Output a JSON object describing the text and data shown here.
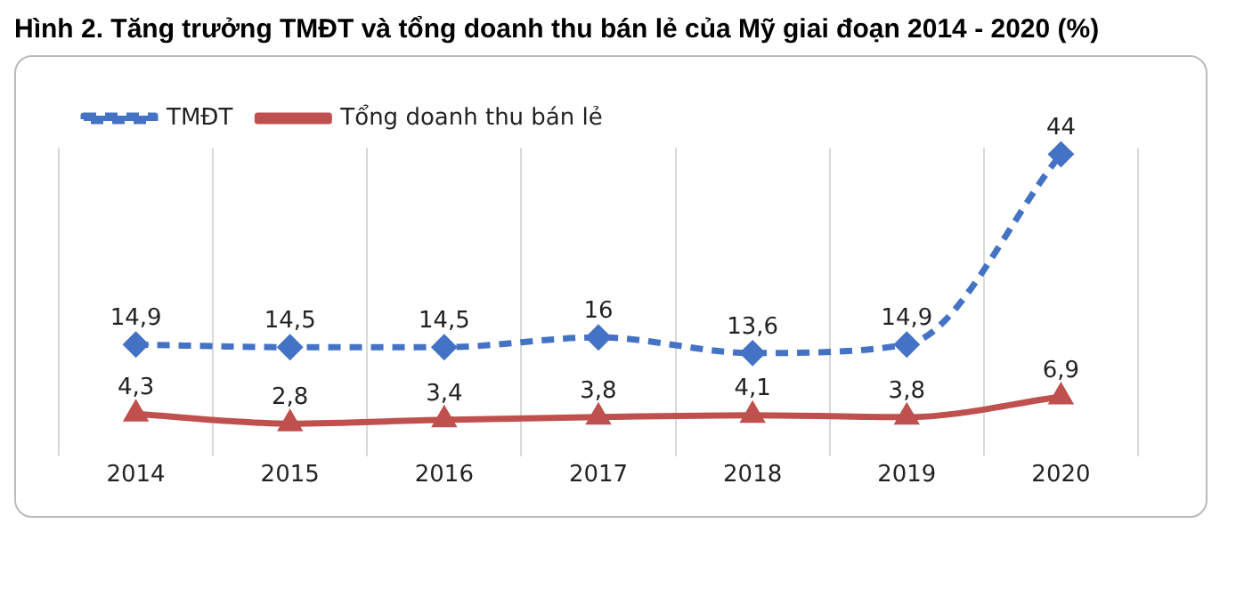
{
  "chart_data": {
    "type": "line",
    "title": "Hình 2. Tăng trưởng TMĐT và tổng doanh thu bán lẻ của Mỹ giai đoạn 2014 - 2020 (%)",
    "categories": [
      "2014",
      "2015",
      "2016",
      "2017",
      "2018",
      "2019",
      "2020"
    ],
    "series": [
      {
        "name": "TMĐT",
        "color": "#4472c4",
        "values": [
          14.9,
          14.5,
          14.5,
          16,
          13.6,
          14.9,
          44
        ],
        "value_labels": [
          "14,9",
          "14,5",
          "14,5",
          "16",
          "13,6",
          "14,9",
          "44"
        ],
        "marker": "diamond",
        "line_style": "dashed"
      },
      {
        "name": "Tổng doanh thu bán lẻ",
        "color": "#c0504d",
        "values": [
          4.3,
          2.8,
          3.4,
          3.8,
          4.1,
          3.8,
          6.9
        ],
        "value_labels": [
          "4,3",
          "2,8",
          "3,4",
          "3,8",
          "4,1",
          "3,8",
          "6,9"
        ],
        "marker": "triangle",
        "line_style": "solid"
      }
    ],
    "grid": "x",
    "legend": "top left"
  }
}
